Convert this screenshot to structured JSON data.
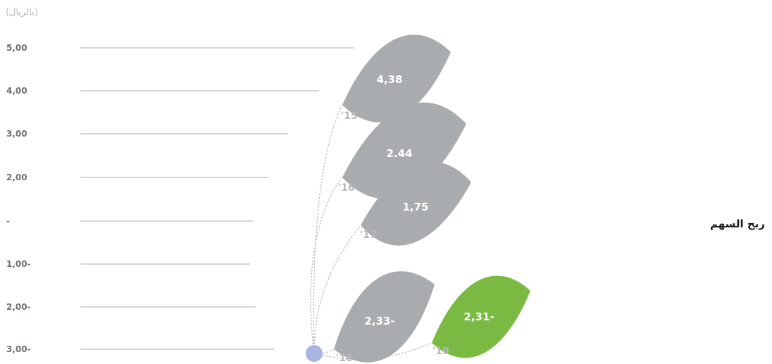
{
  "unit_note": "(بالريال)",
  "side_title": "ربح السهم",
  "colors": {
    "leaf_default": "#a9acae",
    "leaf_highlight": "#7aba43",
    "origin_dot": "#a8b6e0",
    "axis_label": "#6d7074",
    "year_label": "#b5b8bb",
    "grid_line": "#d4d6d8"
  },
  "chart_data": {
    "type": "other",
    "y_tick_labels": [
      "5,00",
      "4,00",
      "3,00",
      "2,00",
      "-",
      "1,00-",
      "2,00-",
      "3,00-"
    ],
    "points": [
      {
        "year": "'15",
        "label": "4,38",
        "value": 4.38,
        "highlight": false
      },
      {
        "year": "'16",
        "label": "2.44",
        "value": 2.44,
        "highlight": false
      },
      {
        "year": "'17",
        "label": "1,75",
        "value": 1.75,
        "highlight": false
      },
      {
        "year": "'18",
        "label": "2,33-",
        "value": -2.33,
        "highlight": false
      },
      {
        "year": "'19",
        "label": "2,31-",
        "value": -2.31,
        "highlight": true
      }
    ]
  }
}
